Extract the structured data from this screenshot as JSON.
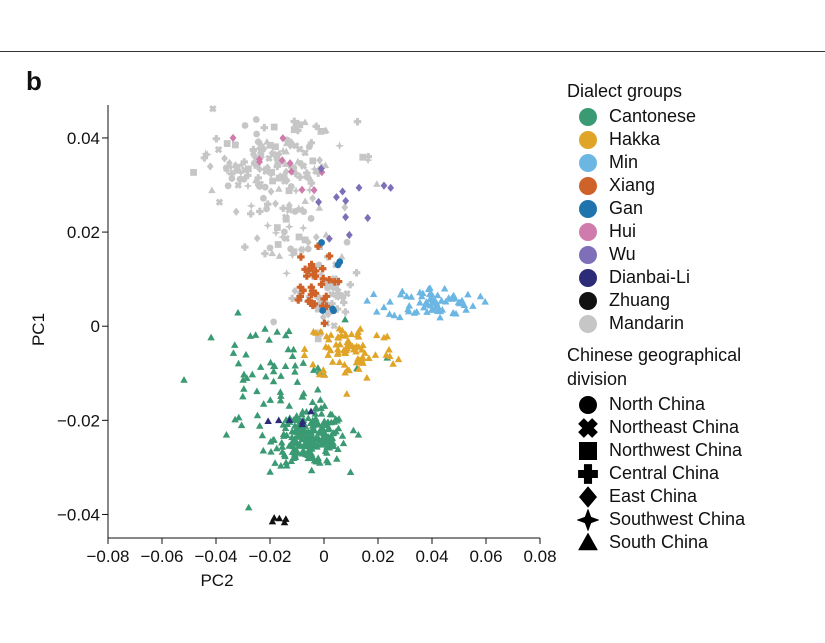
{
  "panel_label": "b",
  "legend": {
    "dialect_title": "Dialect groups",
    "dialects": [
      {
        "name": "Cantonese",
        "color": "#3a9a73"
      },
      {
        "name": "Hakka",
        "color": "#e0a528"
      },
      {
        "name": "Min",
        "color": "#6cb6e4"
      },
      {
        "name": "Xiang",
        "color": "#cf6228"
      },
      {
        "name": "Gan",
        "color": "#1f74ad"
      },
      {
        "name": "Hui",
        "color": "#cf7bac"
      },
      {
        "name": "Wu",
        "color": "#7e6fb8"
      },
      {
        "name": "Dianbai-Li",
        "color": "#2b2b78"
      },
      {
        "name": "Zhuang",
        "color": "#111111"
      },
      {
        "name": "Mandarin",
        "color": "#c6c6c6"
      }
    ],
    "geo_title": "Chinese geographical division",
    "divisions": [
      {
        "name": "North China",
        "shape": "circle-icon"
      },
      {
        "name": "Northeast China",
        "shape": "x-cross-icon"
      },
      {
        "name": "Northwest China",
        "shape": "square-icon"
      },
      {
        "name": "Central China",
        "shape": "plus-cross-icon"
      },
      {
        "name": "East China",
        "shape": "diamond-icon"
      },
      {
        "name": "Southwest China",
        "shape": "four-point-star-icon"
      },
      {
        "name": "South China",
        "shape": "triangle-icon"
      }
    ]
  },
  "chart_data": {
    "type": "scatter",
    "xlabel": "PC2",
    "ylabel": "PC1",
    "xlim": [
      -0.08,
      0.08
    ],
    "ylim": [
      -0.045,
      0.047
    ],
    "xticks": [
      -0.08,
      -0.06,
      -0.04,
      -0.02,
      0,
      0.02,
      0.04,
      0.06,
      0.08
    ],
    "xtick_labels": [
      "−0.08",
      "−0.06",
      "−0.04",
      "−0.02",
      "0",
      "0.02",
      "0.04",
      "0.06",
      "0.08"
    ],
    "yticks": [
      0.04,
      0.02,
      0,
      -0.02,
      -0.04
    ],
    "ytick_labels": [
      "0.04",
      "0.02",
      "0",
      "−0.02",
      "−0.04"
    ],
    "grid": false,
    "legend_position": "right",
    "clusters": [
      {
        "dialect": "Mandarin",
        "shape": "mixed",
        "center": [
          -0.02,
          0.035
        ],
        "spread": [
          0.025,
          0.008
        ],
        "n": 140
      },
      {
        "dialect": "Mandarin",
        "shape": "mixed",
        "center": [
          -0.01,
          0.02
        ],
        "spread": [
          0.015,
          0.01
        ],
        "n": 60
      },
      {
        "dialect": "Mandarin",
        "shape": "mixed",
        "center": [
          0.0,
          0.006
        ],
        "spread": [
          0.01,
          0.006
        ],
        "n": 40
      },
      {
        "dialect": "Cantonese",
        "shape": "triangle",
        "center": [
          -0.005,
          -0.024
        ],
        "spread": [
          0.012,
          0.005
        ],
        "n": 220
      },
      {
        "dialect": "Cantonese",
        "shape": "triangle",
        "center": [
          -0.02,
          -0.012
        ],
        "spread": [
          0.025,
          0.012
        ],
        "n": 70
      },
      {
        "dialect": "Hakka",
        "shape": "triangle",
        "center": [
          0.01,
          -0.005
        ],
        "spread": [
          0.015,
          0.006
        ],
        "n": 80
      },
      {
        "dialect": "Min",
        "shape": "triangle",
        "center": [
          0.04,
          0.005
        ],
        "spread": [
          0.015,
          0.003
        ],
        "n": 70
      },
      {
        "dialect": "Xiang",
        "shape": "plus",
        "center": [
          -0.005,
          0.008
        ],
        "spread": [
          0.008,
          0.007
        ],
        "n": 35
      },
      {
        "dialect": "Hui",
        "shape": "diamond",
        "center": [
          -0.02,
          0.035
        ],
        "spread": [
          0.02,
          0.006
        ],
        "n": 10
      },
      {
        "dialect": "Wu",
        "shape": "diamond",
        "center": [
          0.01,
          0.025
        ],
        "spread": [
          0.012,
          0.008
        ],
        "n": 12
      },
      {
        "dialect": "Gan",
        "shape": "circle",
        "center": [
          0.0,
          0.01
        ],
        "spread": [
          0.008,
          0.008
        ],
        "n": 6
      },
      {
        "dialect": "Dianbai-Li",
        "shape": "triangle",
        "center": [
          -0.01,
          -0.02
        ],
        "spread": [
          0.01,
          0.006
        ],
        "n": 6
      },
      {
        "dialect": "Zhuang",
        "shape": "triangle",
        "center": [
          -0.017,
          -0.041
        ],
        "spread": [
          0.003,
          0.001
        ],
        "n": 5
      }
    ]
  }
}
